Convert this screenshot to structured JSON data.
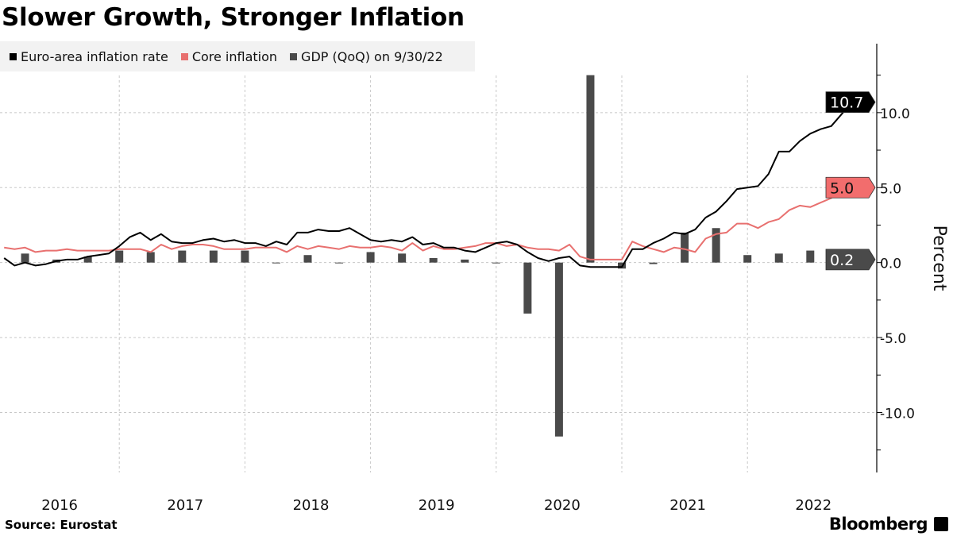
{
  "title": "Slower Growth, Stronger Inflation",
  "source": "Source: Eurostat",
  "brand": "Bloomberg",
  "colors": {
    "headline": "#000000",
    "core": "#e8706f",
    "gdp": "#4a4a4a",
    "core_label_bg": "#f26d6d",
    "grid": "#c8c8c8"
  },
  "chart_data": {
    "type": "line+bar",
    "title": "Slower Growth, Stronger Inflation",
    "ylabel": "Percent",
    "ylim": [
      -14,
      14.6
    ],
    "y_ticks": [
      "10.0",
      "5.0",
      "0.0",
      "-5.0",
      "-10.0"
    ],
    "y_tick_values": [
      10,
      5,
      0,
      -5,
      -10
    ],
    "x_tick_labels": [
      "2016",
      "2017",
      "2018",
      "2019",
      "2020",
      "2021",
      "2022"
    ],
    "grid": true,
    "legend_placement": "top-left",
    "legend": [
      "Euro-area inflation rate",
      "Core inflation",
      "GDP (QoQ) on 9/30/22"
    ],
    "months": [
      "2016-01",
      "2016-02",
      "2016-03",
      "2016-04",
      "2016-05",
      "2016-06",
      "2016-07",
      "2016-08",
      "2016-09",
      "2016-10",
      "2016-11",
      "2016-12",
      "2017-01",
      "2017-02",
      "2017-03",
      "2017-04",
      "2017-05",
      "2017-06",
      "2017-07",
      "2017-08",
      "2017-09",
      "2017-10",
      "2017-11",
      "2017-12",
      "2018-01",
      "2018-02",
      "2018-03",
      "2018-04",
      "2018-05",
      "2018-06",
      "2018-07",
      "2018-08",
      "2018-09",
      "2018-10",
      "2018-11",
      "2018-12",
      "2019-01",
      "2019-02",
      "2019-03",
      "2019-04",
      "2019-05",
      "2019-06",
      "2019-07",
      "2019-08",
      "2019-09",
      "2019-10",
      "2019-11",
      "2019-12",
      "2020-01",
      "2020-02",
      "2020-03",
      "2020-04",
      "2020-05",
      "2020-06",
      "2020-07",
      "2020-08",
      "2020-09",
      "2020-10",
      "2020-11",
      "2020-12",
      "2021-01",
      "2021-02",
      "2021-03",
      "2021-04",
      "2021-05",
      "2021-06",
      "2021-07",
      "2021-08",
      "2021-09",
      "2021-10",
      "2021-11",
      "2021-12",
      "2022-01",
      "2022-02",
      "2022-03",
      "2022-04",
      "2022-05",
      "2022-06",
      "2022-07",
      "2022-08",
      "2022-09",
      "2022-10"
    ],
    "series": [
      {
        "name": "Euro-area inflation rate",
        "kind": "line",
        "last_label": "10.7",
        "values": [
          0.3,
          -0.2,
          0.0,
          -0.2,
          -0.1,
          0.1,
          0.2,
          0.2,
          0.4,
          0.5,
          0.6,
          1.1,
          1.7,
          2.0,
          1.5,
          1.9,
          1.4,
          1.3,
          1.3,
          1.5,
          1.6,
          1.4,
          1.5,
          1.3,
          1.3,
          1.1,
          1.4,
          1.2,
          2.0,
          2.0,
          2.2,
          2.1,
          2.1,
          2.3,
          1.9,
          1.5,
          1.4,
          1.5,
          1.4,
          1.7,
          1.2,
          1.3,
          1.0,
          1.0,
          0.8,
          0.7,
          1.0,
          1.3,
          1.4,
          1.2,
          0.7,
          0.3,
          0.1,
          0.3,
          0.4,
          -0.2,
          -0.3,
          -0.3,
          -0.3,
          -0.3,
          0.9,
          0.9,
          1.3,
          1.6,
          2.0,
          1.9,
          2.2,
          3.0,
          3.4,
          4.1,
          4.9,
          5.0,
          5.1,
          5.9,
          7.4,
          7.4,
          8.1,
          8.6,
          8.9,
          9.1,
          9.9,
          10.7
        ]
      },
      {
        "name": "Core inflation",
        "kind": "line",
        "last_label": "5.0",
        "values": [
          1.0,
          0.9,
          1.0,
          0.7,
          0.8,
          0.8,
          0.9,
          0.8,
          0.8,
          0.8,
          0.8,
          0.9,
          0.9,
          0.9,
          0.7,
          1.2,
          0.9,
          1.1,
          1.2,
          1.2,
          1.1,
          0.9,
          0.9,
          0.9,
          1.0,
          1.0,
          1.0,
          0.7,
          1.1,
          0.9,
          1.1,
          1.0,
          0.9,
          1.1,
          1.0,
          1.0,
          1.1,
          1.0,
          0.8,
          1.3,
          0.8,
          1.1,
          0.9,
          0.9,
          1.0,
          1.1,
          1.3,
          1.3,
          1.1,
          1.2,
          1.0,
          0.9,
          0.9,
          0.8,
          1.2,
          0.4,
          0.2,
          0.2,
          0.2,
          0.2,
          1.4,
          1.1,
          0.9,
          0.7,
          1.0,
          0.9,
          0.7,
          1.6,
          1.9,
          2.0,
          2.6,
          2.6,
          2.3,
          2.7,
          2.9,
          3.5,
          3.8,
          3.7,
          4.0,
          4.3,
          4.8,
          5.0
        ]
      },
      {
        "name": "GDP (QoQ) on 9/30/22",
        "kind": "bar",
        "last_label": "0.2",
        "x": [
          "2016-03",
          "2016-06",
          "2016-09",
          "2016-12",
          "2017-03",
          "2017-06",
          "2017-09",
          "2017-12",
          "2018-03",
          "2018-06",
          "2018-09",
          "2018-12",
          "2019-03",
          "2019-06",
          "2019-09",
          "2019-12",
          "2020-03",
          "2020-06",
          "2020-09",
          "2020-12",
          "2021-03",
          "2021-06",
          "2021-09",
          "2021-12",
          "2022-03",
          "2022-06",
          "2022-09"
        ],
        "values": [
          0.6,
          0.2,
          0.4,
          0.8,
          0.7,
          0.8,
          0.8,
          0.8,
          0.0,
          0.5,
          0.0,
          0.7,
          0.6,
          0.3,
          0.2,
          0.0,
          -3.4,
          -11.6,
          12.5,
          -0.4,
          -0.1,
          2.0,
          2.3,
          0.5,
          0.6,
          0.8,
          0.2
        ]
      }
    ]
  }
}
